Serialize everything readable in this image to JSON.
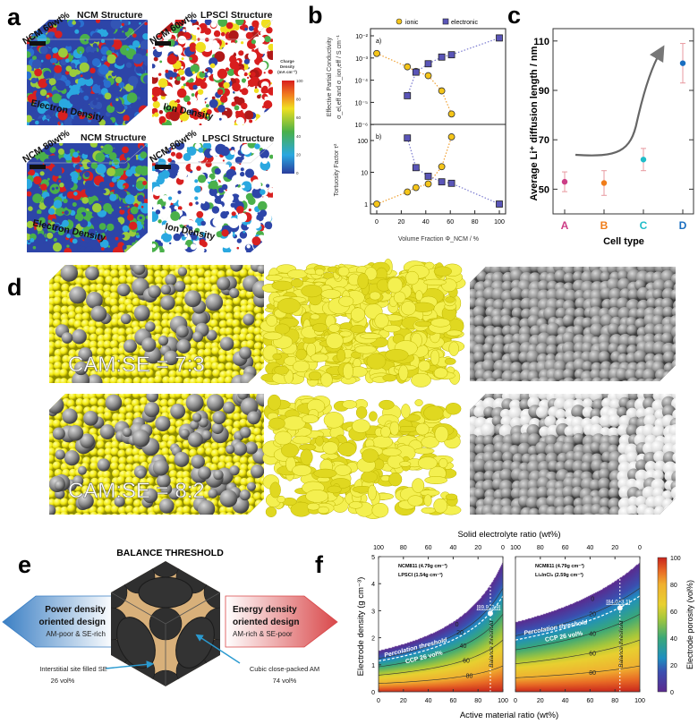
{
  "panel_labels": {
    "a": "a",
    "b": "b",
    "c": "c",
    "d": "d",
    "e": "e",
    "f": "f"
  },
  "panel_a": {
    "tl_sample": "NCM 60wt%",
    "tl_structure": "NCM Structure",
    "tl_density": "Electron Density",
    "tr_sample": "NCM 60wt%",
    "tr_structure": "LPSCl Structure",
    "tr_density": "Ion Density",
    "bl_sample": "NCM 80wt%",
    "bl_structure": "NCM Structure",
    "bl_density": "Electron Density",
    "br_sample": "NCM 80wt%",
    "br_structure": "LPSCl Structure",
    "br_density": "Ion Density",
    "colorbar": {
      "title_1": "Charge",
      "title_2": "Density",
      "title_3": "(mA cm⁻²)",
      "ticks": [
        "100",
        "80",
        "60",
        "40",
        "20",
        "0"
      ]
    }
  },
  "panel_d": {
    "ratio_1": "CAM:SE = 7:3",
    "ratio_2": "CAM:SE = 8:2"
  },
  "panel_e": {
    "title": "BALANCE THRESHOLD",
    "left": {
      "title_1": "Power density",
      "title_2": "oriented design",
      "sub": "AM-poor & SE-rich",
      "color": "#3b7fc4"
    },
    "right": {
      "title_1": "Energy density",
      "title_2": "oriented design",
      "sub": "AM-rich & SE-poor",
      "color": "#d9484a"
    },
    "annot_left_1": "Interstitial site filled SE",
    "annot_left_2": "26 vol%",
    "annot_right_1": "Cubic close-packed AM",
    "annot_right_2": "74 vol%"
  },
  "chart_data": [
    {
      "id": "b",
      "type": "scatter",
      "legend": [
        "ionic",
        "electronic"
      ],
      "legend_position": "top",
      "xlabel": "Volume Fraction Φ_NCM / %",
      "xticks": [
        0,
        20,
        40,
        60,
        80,
        100
      ],
      "xlim": [
        -5,
        105
      ],
      "top": {
        "tag": "a)",
        "ylabel_1": "Effective Partial Conductivity",
        "ylabel_2": "σ_el,eff and σ_ion,eff / S cm⁻¹",
        "yscale": "log",
        "ylim": [
          1e-06,
          0.01
        ],
        "yticks": [
          {
            "v": -2,
            "label": "10⁻²"
          },
          {
            "v": -3,
            "label": "10⁻³"
          },
          {
            "v": -4,
            "label": "10⁻⁴"
          },
          {
            "v": -5,
            "label": "10⁻⁵"
          },
          {
            "v": -6,
            "label": "10⁻⁶"
          }
        ],
        "series": [
          {
            "name": "ionic",
            "x": [
              0,
              25,
              32,
              42,
              53,
              61
            ],
            "y": [
              0.0016,
              0.0004,
              0.00025,
              0.00016,
              3.3e-05,
              3e-06
            ]
          },
          {
            "name": "electronic",
            "x": [
              25,
              32,
              42,
              53,
              61,
              100
            ],
            "y": [
              2e-05,
              0.00023,
              0.00055,
              0.0011,
              0.0014,
              0.008
            ]
          }
        ]
      },
      "bottom": {
        "tag": "b)",
        "ylabel": "Tortuosity Factor τ²",
        "yscale": "log",
        "ylim": [
          0.5,
          300
        ],
        "yticks": [
          {
            "v": 1,
            "label": "1"
          },
          {
            "v": 10,
            "label": "10"
          },
          {
            "v": 100,
            "label": "100"
          }
        ],
        "series": [
          {
            "name": "ionic",
            "x": [
              0,
              25,
              32,
              42,
              53,
              61
            ],
            "y": [
              1.0,
              2.4,
              3.3,
              4.3,
              15,
              130
            ]
          },
          {
            "name": "electronic",
            "x": [
              25,
              32,
              42,
              53,
              61,
              100
            ],
            "y": [
              120,
              14,
              7.5,
              5,
              4.5,
              1.0
            ]
          }
        ]
      },
      "colors": {
        "ionic": "#f5c518",
        "electronic": "#5a55b8",
        "ionic_fit": "#f0a030",
        "electronic_fit": "#7b7bd0"
      }
    },
    {
      "id": "c",
      "type": "scatter",
      "categories": [
        "A",
        "B",
        "C",
        "D"
      ],
      "values": [
        53,
        52.5,
        62,
        101
      ],
      "errors": [
        4,
        5,
        4.5,
        8
      ],
      "colors": [
        "#cc3d86",
        "#f07d1a",
        "#20bcc8",
        "#1a6ec0"
      ],
      "ylabel": "Average Li⁺ diffusion length / nm",
      "xlabel": "Cell type",
      "ylim": [
        40,
        115
      ],
      "yticks": [
        50,
        70,
        90,
        110
      ]
    },
    {
      "id": "f",
      "type": "heatmap",
      "xlabel": "Active material ratio (wt%)",
      "xlabel_top": "Solid electrolyte ratio (wt%)",
      "ylabel": "Electrode density (g cm⁻³)",
      "xticks": [
        0,
        20,
        40,
        60,
        80,
        100
      ],
      "xticks_top": [
        100,
        80,
        60,
        40,
        20,
        0
      ],
      "ylim": [
        0,
        5
      ],
      "yticks": [
        0,
        1,
        2,
        3,
        4,
        5
      ],
      "contours": [
        0,
        20,
        40,
        60,
        80
      ],
      "percolation_label": "Percolation threshold",
      "ccp_label": "CCP 26 vol%",
      "ccp_porosity": 26,
      "balance_label": "Balance threshold",
      "colorbar": {
        "label": "Electrode porosity (vol%)",
        "ticks": [
          0,
          20,
          40,
          60,
          80,
          100
        ]
      },
      "panels": [
        {
          "material_1": "NCM811 (4.79g cm⁻³)",
          "material_2": "LPSCl (1.54g cm⁻³)",
          "am_density": 4.79,
          "se_density": 1.54,
          "balance": {
            "x": 89.9,
            "y": 2.9,
            "label": "[89.9, 2.9]"
          }
        },
        {
          "material_1": "NCM811 (4.79g cm⁻³)",
          "material_2": "Li₃InCl₆ (2.59g cm⁻³)",
          "am_density": 4.79,
          "se_density": 2.59,
          "balance": {
            "x": 84.0,
            "y": 3.1,
            "label": "[84.0, 3.1]"
          }
        }
      ]
    }
  ]
}
